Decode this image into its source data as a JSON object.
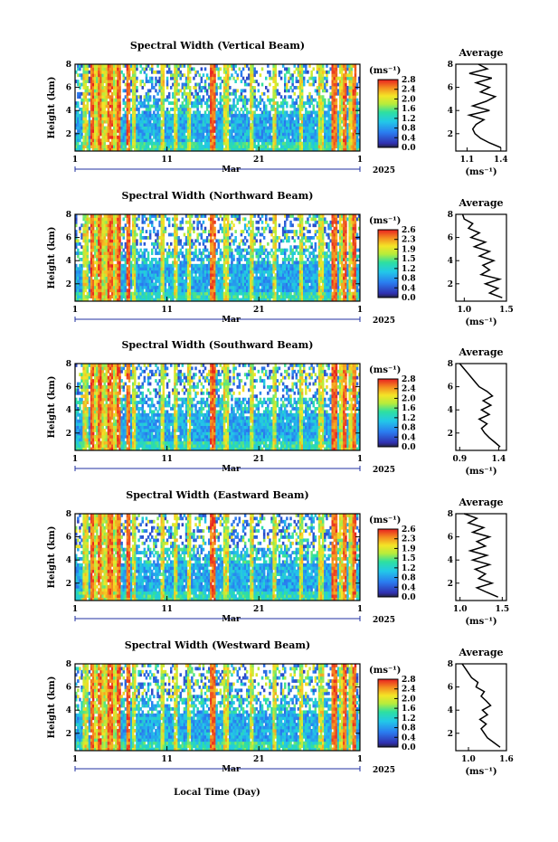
{
  "figure": {
    "xlabel": "Local Time (Day)",
    "month_label": "Mar",
    "year_label": "2025",
    "day_ticks": [
      "1",
      "11",
      "21",
      "1"
    ],
    "height_label": "Height (km)",
    "height_ticks": [
      "2",
      "4",
      "6",
      "8"
    ],
    "unit_label": "(ms⁻¹)",
    "avg_title": "Average",
    "avg_unit": "(ms⁻¹)"
  },
  "chart_data": [
    {
      "type": "heatmap",
      "title": "Spectral Width (Vertical Beam)",
      "ylabel": "Height (km)",
      "ylim": [
        0.5,
        8
      ],
      "xlim": [
        "Mar 1",
        "Apr 1"
      ],
      "colorbar": {
        "label": "(ms⁻¹)",
        "range": [
          0.0,
          2.8
        ],
        "ticks": [
          "0.0",
          "0.4",
          "0.8",
          "1.2",
          "1.6",
          "2.0",
          "2.4",
          "2.8"
        ]
      },
      "profile": {
        "title": "Average",
        "xlabel": "(ms⁻¹)",
        "xlim": [
          1.0,
          1.45
        ],
        "xticks": [
          "1.1",
          "1.4"
        ],
        "height": [
          0.8,
          1.2,
          1.6,
          2.0,
          2.4,
          2.8,
          3.2,
          3.6,
          4.0,
          4.4,
          4.8,
          5.2,
          5.6,
          6.0,
          6.4,
          6.8,
          7.2,
          7.6,
          8.0
        ],
        "values": [
          1.4,
          1.3,
          1.22,
          1.17,
          1.15,
          1.18,
          1.25,
          1.12,
          1.3,
          1.15,
          1.27,
          1.35,
          1.22,
          1.3,
          1.18,
          1.32,
          1.12,
          1.28,
          1.2
        ]
      }
    },
    {
      "type": "heatmap",
      "title": "Spectral Width (Northward Beam)",
      "ylabel": "Height (km)",
      "ylim": [
        0.5,
        8
      ],
      "xlim": [
        "Mar 1",
        "Apr 1"
      ],
      "colorbar": {
        "label": "(ms⁻¹)",
        "range": [
          0.0,
          2.6
        ],
        "ticks": [
          "0.0",
          "0.4",
          "0.8",
          "1.2",
          "1.5",
          "1.9",
          "2.3",
          "2.6"
        ]
      },
      "profile": {
        "title": "Average",
        "xlabel": "(ms⁻¹)",
        "xlim": [
          0.9,
          1.5
        ],
        "xticks": [
          "1.0",
          "1.5"
        ],
        "height": [
          0.8,
          1.2,
          1.6,
          2.0,
          2.4,
          2.8,
          3.2,
          3.6,
          4.0,
          4.4,
          4.8,
          5.2,
          5.6,
          6.0,
          6.4,
          6.8,
          7.2,
          7.6,
          8.0
        ],
        "values": [
          1.45,
          1.3,
          1.4,
          1.25,
          1.42,
          1.2,
          1.3,
          1.22,
          1.35,
          1.18,
          1.3,
          1.12,
          1.25,
          1.08,
          1.18,
          1.05,
          1.1,
          1.0,
          0.98
        ]
      }
    },
    {
      "type": "heatmap",
      "title": "Spectral Width (Southward Beam)",
      "ylabel": "Height (km)",
      "ylim": [
        0.5,
        8
      ],
      "xlim": [
        "Mar 1",
        "Apr 1"
      ],
      "colorbar": {
        "label": "(ms⁻¹)",
        "range": [
          0.0,
          2.8
        ],
        "ticks": [
          "0.0",
          "0.4",
          "0.8",
          "1.2",
          "1.6",
          "2.0",
          "2.4",
          "2.8"
        ]
      },
      "profile": {
        "title": "Average",
        "xlabel": "(ms⁻¹)",
        "xlim": [
          0.85,
          1.5
        ],
        "xticks": [
          "0.9",
          "1.4"
        ],
        "height": [
          0.8,
          1.2,
          1.6,
          2.0,
          2.4,
          2.8,
          3.2,
          3.6,
          4.0,
          4.4,
          4.8,
          5.2,
          5.6,
          6.0,
          6.4,
          6.8,
          7.2,
          7.6,
          8.0
        ],
        "values": [
          1.42,
          1.35,
          1.28,
          1.22,
          1.18,
          1.25,
          1.15,
          1.28,
          1.18,
          1.3,
          1.2,
          1.32,
          1.25,
          1.15,
          1.1,
          1.05,
          1.0,
          0.95,
          0.9
        ]
      }
    },
    {
      "type": "heatmap",
      "title": "Spectral Width (Eastward Beam)",
      "ylabel": "Height (km)",
      "ylim": [
        0.5,
        8
      ],
      "xlim": [
        "Mar 1",
        "Apr 1"
      ],
      "colorbar": {
        "label": "(ms⁻¹)",
        "range": [
          0.0,
          2.6
        ],
        "ticks": [
          "0.0",
          "0.4",
          "0.8",
          "1.2",
          "1.5",
          "1.9",
          "2.3",
          "2.6"
        ]
      },
      "profile": {
        "title": "Average",
        "xlabel": "(ms⁻¹)",
        "xlim": [
          0.95,
          1.55
        ],
        "xticks": [
          "1.0",
          "1.5"
        ],
        "height": [
          0.8,
          1.2,
          1.6,
          2.0,
          2.4,
          2.8,
          3.2,
          3.6,
          4.0,
          4.4,
          4.8,
          5.2,
          5.6,
          6.0,
          6.4,
          6.8,
          7.2,
          7.6,
          8.0
        ],
        "values": [
          1.45,
          1.32,
          1.2,
          1.38,
          1.22,
          1.3,
          1.18,
          1.35,
          1.15,
          1.32,
          1.12,
          1.3,
          1.2,
          1.35,
          1.15,
          1.28,
          1.1,
          1.2,
          1.05
        ]
      }
    },
    {
      "type": "heatmap",
      "title": "Spectral Width (Westward Beam)",
      "ylabel": "Height (km)",
      "ylim": [
        0.5,
        8
      ],
      "xlim": [
        "Mar 1",
        "Apr 1"
      ],
      "colorbar": {
        "label": "(ms⁻¹)",
        "range": [
          0.0,
          2.8
        ],
        "ticks": [
          "0.0",
          "0.4",
          "0.8",
          "1.2",
          "1.6",
          "2.0",
          "2.4",
          "2.8"
        ]
      },
      "profile": {
        "title": "Average",
        "xlabel": "(ms⁻¹)",
        "xlim": [
          0.8,
          1.6
        ],
        "xticks": [
          "1.0",
          "1.6"
        ],
        "height": [
          0.8,
          1.2,
          1.6,
          2.0,
          2.4,
          2.8,
          3.2,
          3.6,
          4.0,
          4.4,
          4.8,
          5.2,
          5.6,
          6.0,
          6.4,
          6.8,
          7.2,
          7.6,
          8.0
        ],
        "values": [
          1.5,
          1.4,
          1.3,
          1.25,
          1.2,
          1.28,
          1.18,
          1.3,
          1.22,
          1.35,
          1.28,
          1.2,
          1.25,
          1.12,
          1.15,
          1.05,
          1.0,
          0.95,
          0.9
        ]
      }
    }
  ]
}
